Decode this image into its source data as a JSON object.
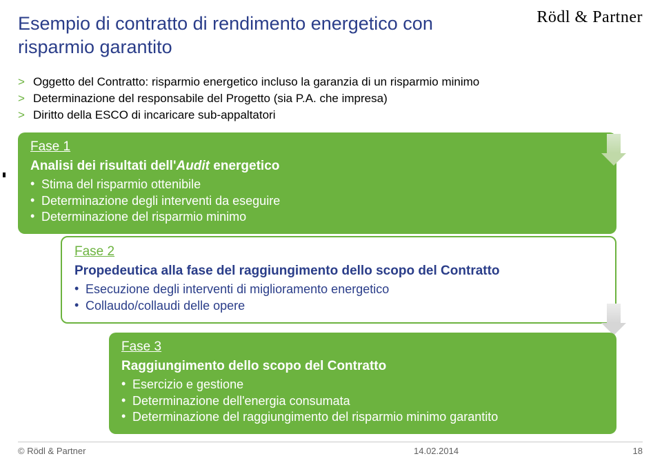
{
  "logo": "Rödl & Partner",
  "title": "Esempio di contratto di rendimento energetico con risparmio garantito",
  "top_bullets": [
    "Oggetto del Contratto: risparmio energetico incluso la garanzia di un risparmio minimo",
    "Determinazione del responsabile del Progetto (sia P.A. che impresa)",
    "Diritto della ESCO di incaricare sub-appaltatori"
  ],
  "phase1": {
    "label": "Fase 1",
    "heading_prefix": "Analisi dei risultati dell'",
    "heading_italic": "Audit",
    "heading_suffix": " energetico",
    "items": [
      "Stima del risparmio ottenibile",
      "Determinazione degli interventi da eseguire",
      "Determinazione del risparmio minimo"
    ]
  },
  "phase2": {
    "label": "Fase 2",
    "heading": "Propedeutica alla fase del raggiungimento dello scopo del Contratto",
    "items": [
      "Esecuzione degli interventi di miglioramento energetico",
      "Collaudo/collaudi delle opere"
    ]
  },
  "phase3": {
    "label": "Fase 3",
    "heading": "Raggiungimento dello scopo del Contratto",
    "items": [
      "Esercizio e gestione",
      "Determinazione dell'energia consumata",
      "Determinazione del raggiungimento del risparmio minimo garantito"
    ]
  },
  "footer": {
    "copyright": "© Rödl & Partner",
    "date": "14.02.2014",
    "page": "18"
  },
  "colors": {
    "green": "#6cb33f",
    "navy": "#2a3d89"
  }
}
